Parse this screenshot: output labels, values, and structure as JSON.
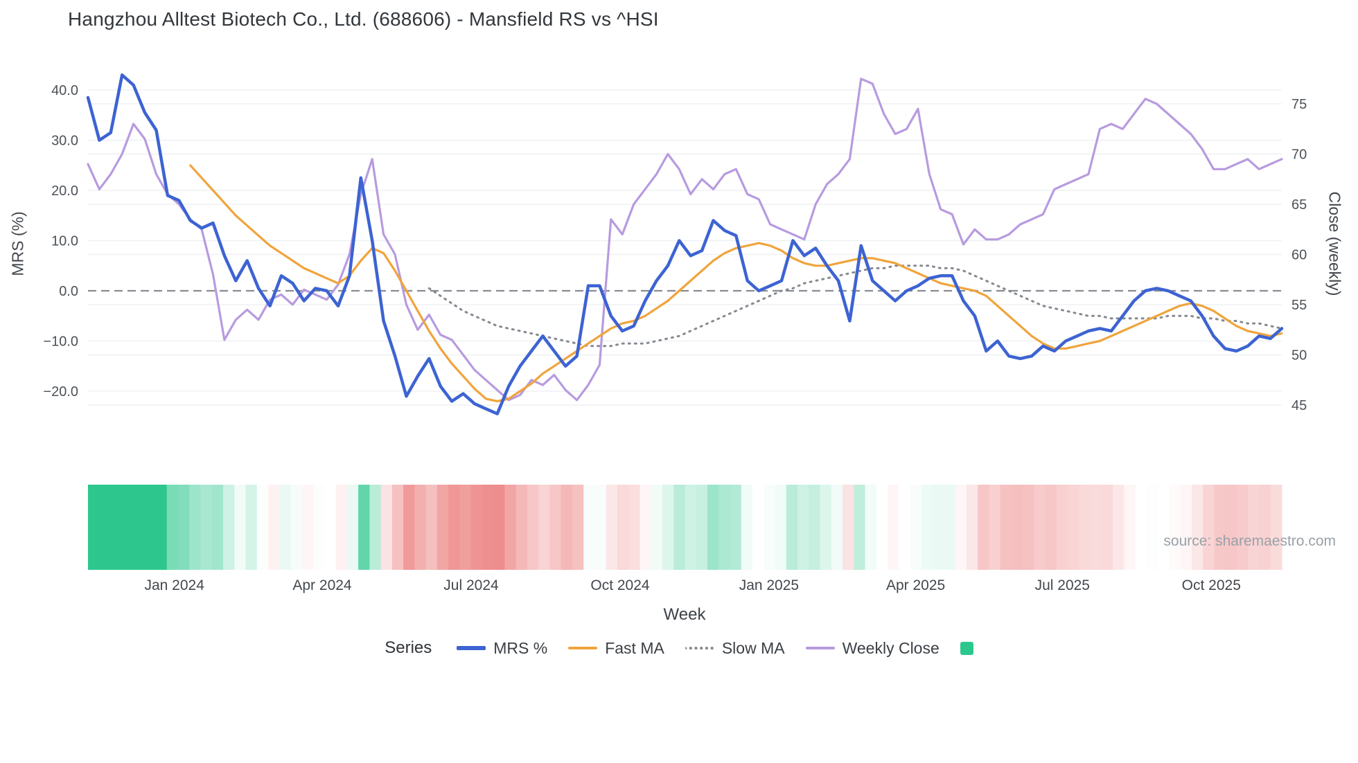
{
  "source": {
    "text": "source: sharemaestro.com"
  },
  "chart_data": {
    "type": "line",
    "title": "Hangzhou Alltest Biotech Co., Ltd. (688606) - Mansfield RS vs ^HSI",
    "xlabel": "Week",
    "ylabel_left": "MRS (%)",
    "ylabel_right": "Close (weekly)",
    "weeks": 106,
    "left_axis": {
      "range": [
        -27,
        45
      ],
      "ticks": [
        40,
        30,
        20,
        10,
        0,
        -10,
        -20
      ],
      "tick_labels": [
        "40.0",
        "30.0",
        "20.0",
        "10.0",
        "0.0",
        "−10.0",
        "−20.0"
      ]
    },
    "right_axis": {
      "range": [
        43.5,
        78
      ],
      "ticks": [
        75,
        70,
        65,
        60,
        55,
        50,
        45
      ],
      "tick_labels": [
        "75",
        "70",
        "65",
        "60",
        "55",
        "50",
        "45"
      ]
    },
    "x_ticks": [
      {
        "label": "Jan 2024",
        "week": 7.6
      },
      {
        "label": "Apr 2024",
        "week": 20.6
      },
      {
        "label": "Jul 2024",
        "week": 33.7
      },
      {
        "label": "Oct 2024",
        "week": 46.8
      },
      {
        "label": "Jan 2025",
        "week": 59.9
      },
      {
        "label": "Apr 2025",
        "week": 72.8
      },
      {
        "label": "Jul 2025",
        "week": 85.7
      },
      {
        "label": "Oct 2025",
        "week": 98.8
      }
    ],
    "zero_line": {
      "value": 0,
      "color": "#878c92",
      "dash": "12 7"
    },
    "grid": {
      "on": true,
      "color": "#edf0f3"
    },
    "series": [
      {
        "name": "MRS %",
        "axis": "left",
        "color": "#3d63d2",
        "width": 4.5,
        "dash": null,
        "values": [
          38.5,
          30,
          31.5,
          43,
          41,
          35.5,
          32,
          19,
          18,
          14,
          12.5,
          13.5,
          7,
          2,
          6,
          0.5,
          -3,
          3,
          1.5,
          -2,
          0.5,
          0,
          -3,
          3,
          22.5,
          10,
          -6,
          -13,
          -21,
          -17,
          -13.5,
          -19,
          -22,
          -20.5,
          -22.5,
          -23.5,
          -24.5,
          -19,
          -15,
          -12,
          -9,
          -12,
          -15,
          -13,
          1,
          1,
          -5,
          -8,
          -7,
          -2,
          2,
          5,
          10,
          7,
          8,
          14,
          12,
          11,
          2,
          0,
          1,
          2,
          10,
          7,
          8.5,
          5,
          2,
          -6,
          9,
          2,
          0,
          -2,
          0,
          1,
          2.5,
          3,
          3,
          -2,
          -5,
          -12,
          -10,
          -13,
          -13.5,
          -13,
          -11,
          -12,
          -10,
          -9,
          -8,
          -7.5,
          -8,
          -5,
          -2,
          0,
          0.5,
          0,
          -1,
          -2,
          -5,
          -9,
          -11.5,
          -12,
          -11,
          -9,
          -9.5,
          -7.5
        ]
      },
      {
        "name": "Fast MA",
        "axis": "left",
        "color": "#f0a43c",
        "width": 3.2,
        "dash": null,
        "values": [
          null,
          null,
          null,
          null,
          null,
          null,
          null,
          null,
          null,
          25,
          22.5,
          20,
          17.5,
          15,
          13,
          11,
          9,
          7.5,
          6,
          4.5,
          3.5,
          2.5,
          1.5,
          3,
          6,
          8.5,
          7.5,
          4,
          0,
          -4,
          -8,
          -11.5,
          -14.5,
          -17,
          -19.5,
          -21.5,
          -22,
          -21.5,
          -20,
          -18.5,
          -16.5,
          -15,
          -13.5,
          -12,
          -10.5,
          -9,
          -7.5,
          -6.5,
          -6,
          -5,
          -3.5,
          -2,
          0,
          2,
          4,
          6,
          7.5,
          8.5,
          9,
          9.5,
          9,
          8,
          6.5,
          5.5,
          5,
          5,
          5.5,
          6,
          6.5,
          6.5,
          6,
          5.5,
          4.5,
          3.5,
          2.5,
          1.5,
          1,
          0.5,
          0,
          -1,
          -3,
          -5,
          -7,
          -9,
          -10.5,
          -11.5,
          -11.5,
          -11,
          -10.5,
          -10,
          -9,
          -8,
          -7,
          -6,
          -5,
          -4,
          -3,
          -2.5,
          -3,
          -4,
          -5.5,
          -7,
          -8,
          -8.5,
          -9,
          -8.5
        ]
      },
      {
        "name": "Slow MA",
        "axis": "left",
        "color": "#85898f",
        "width": 3,
        "dash": "2 7",
        "values": [
          null,
          null,
          null,
          null,
          null,
          null,
          null,
          null,
          null,
          null,
          null,
          null,
          null,
          null,
          null,
          null,
          null,
          null,
          null,
          null,
          null,
          null,
          null,
          null,
          null,
          null,
          null,
          null,
          null,
          null,
          0.5,
          -1,
          -2.5,
          -4,
          -5,
          -6,
          -7,
          -7.5,
          -8,
          -8.5,
          -9,
          -9.5,
          -10,
          -10.5,
          -11,
          -11,
          -11,
          -10.5,
          -10.5,
          -10.5,
          -10,
          -9.5,
          -9,
          -8,
          -7,
          -6,
          -5,
          -4,
          -3,
          -2,
          -1,
          0,
          0.5,
          1.5,
          2,
          2.5,
          3,
          3.5,
          4,
          4.5,
          4.5,
          5,
          5,
          5,
          5,
          4.5,
          4.5,
          4,
          3,
          2,
          1,
          0,
          -1,
          -2,
          -3,
          -3.5,
          -4,
          -4.5,
          -5,
          -5,
          -5.5,
          -5.5,
          -5.5,
          -5.5,
          -5.5,
          -5,
          -5,
          -5,
          -5.5,
          -5.5,
          -6,
          -6,
          -6.5,
          -6.5,
          -7,
          -7.5
        ]
      },
      {
        "name": "Weekly Close",
        "axis": "right",
        "color": "#b79bdf",
        "width": 3.2,
        "dash": null,
        "values": [
          69,
          66.5,
          68,
          70,
          73,
          71.5,
          68,
          66,
          65,
          63.5,
          62.5,
          58,
          51.5,
          53.5,
          54.5,
          53.5,
          55.5,
          56,
          55,
          56.5,
          56,
          55.5,
          57,
          60,
          66,
          69.5,
          62,
          60,
          55,
          52.5,
          54,
          52,
          51.5,
          50,
          48.5,
          47.5,
          46.5,
          45.5,
          46,
          47.5,
          47,
          48,
          46.5,
          45.5,
          47,
          49,
          63.5,
          62,
          65,
          66.5,
          68,
          70,
          68.5,
          66,
          67.5,
          66.5,
          68,
          68.5,
          66,
          65.5,
          63,
          62.5,
          62,
          61.5,
          65,
          67,
          68,
          69.5,
          77.5,
          77,
          74,
          72,
          72.5,
          74.5,
          68,
          64.5,
          64,
          61,
          62.5,
          61.5,
          61.5,
          62,
          63,
          63.5,
          64,
          66.5,
          67,
          67.5,
          68,
          72.5,
          73,
          72.5,
          74,
          75.5,
          75,
          74,
          73,
          72,
          70.5,
          68.5,
          68.5,
          69,
          69.5,
          68.5,
          69,
          69.5
        ]
      }
    ],
    "heatmap": {
      "basis": "MRS %",
      "positive_color": "#2dc78e",
      "negative_color": "#ee8d8d",
      "positive_saturation_at": 30,
      "negative_saturation_at": 24
    },
    "legend": {
      "title": "Series",
      "items": [
        {
          "label": "MRS %",
          "swatch": "line",
          "color": "#3d63d2",
          "thickness": 6,
          "dash": false
        },
        {
          "label": "Fast MA",
          "swatch": "line",
          "color": "#f0a43c",
          "thickness": 4,
          "dash": false
        },
        {
          "label": "Slow MA",
          "swatch": "line",
          "color": "#85898f",
          "thickness": 4,
          "dash": true
        },
        {
          "label": "Weekly Close",
          "swatch": "line",
          "color": "#b79bdf",
          "thickness": 4,
          "dash": false
        },
        {
          "label": "",
          "swatch": "square",
          "color": "#2dc78e"
        }
      ]
    }
  }
}
